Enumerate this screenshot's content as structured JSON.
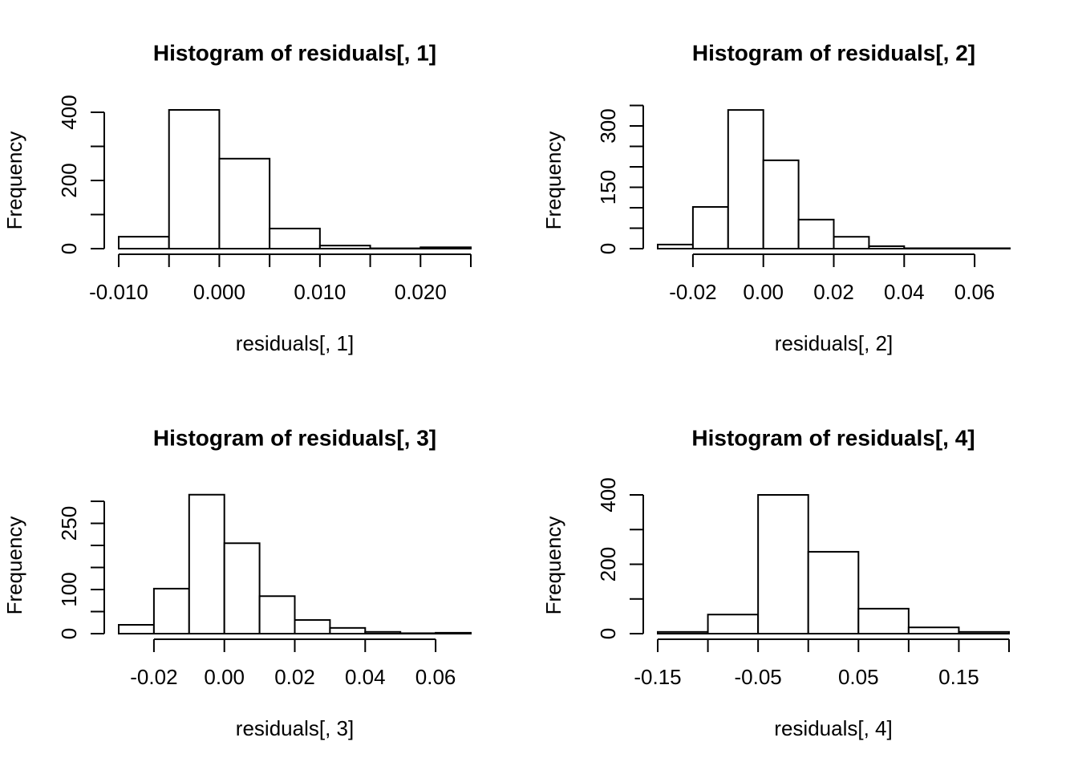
{
  "chart_data": [
    {
      "type": "histogram",
      "title": "Histogram of residuals[, 1]",
      "xlabel": "residuals[, 1]",
      "ylabel": "Frequency",
      "bins": [
        -0.01,
        -0.005,
        0,
        0.005,
        0.01,
        0.015,
        0.02,
        0.025
      ],
      "counts": [
        35,
        407,
        264,
        59,
        9,
        1,
        4
      ],
      "xlim": [
        -0.01,
        0.025
      ],
      "ylim": [
        0,
        400
      ],
      "xticks": [
        {
          "value": -0.01,
          "label": "-0.010"
        },
        -0.005,
        {
          "value": 0,
          "label": "0.000"
        },
        0.005,
        {
          "value": 0.01,
          "label": "0.010"
        },
        0.015,
        {
          "value": 0.02,
          "label": "0.020"
        },
        0.025
      ],
      "yticks": [
        0,
        100,
        200,
        300,
        400
      ]
    },
    {
      "type": "histogram",
      "title": "Histogram of residuals[, 2]",
      "xlabel": "residuals[, 2]",
      "ylabel": "Frequency",
      "bins": [
        -0.03,
        -0.02,
        -0.01,
        0,
        0.01,
        0.02,
        0.03,
        0.04,
        0.05,
        0.06,
        0.07
      ],
      "counts": [
        10,
        102,
        339,
        216,
        71,
        29,
        6,
        1,
        1,
        1
      ],
      "xlim": [
        -0.03,
        0.07
      ],
      "ylim": [
        0,
        350
      ],
      "xticks": [
        {
          "value": -0.02,
          "label": "-0.02"
        },
        {
          "value": 0,
          "label": "0.00"
        },
        {
          "value": 0.02,
          "label": "0.02"
        },
        {
          "value": 0.04,
          "label": "0.04"
        },
        {
          "value": 0.06,
          "label": "0.06"
        }
      ],
      "yticks": [
        0,
        50,
        100,
        150,
        200,
        250,
        300,
        350
      ]
    },
    {
      "type": "histogram",
      "title": "Histogram of residuals[, 3]",
      "xlabel": "residuals[, 3]",
      "ylabel": "Frequency",
      "bins": [
        -0.03,
        -0.02,
        -0.01,
        0,
        0.01,
        0.02,
        0.03,
        0.04,
        0.05,
        0.06,
        0.07
      ],
      "counts": [
        20,
        102,
        315,
        205,
        85,
        31,
        13,
        4,
        1,
        2
      ],
      "xlim": [
        -0.03,
        0.07
      ],
      "ylim": [
        0,
        300
      ],
      "xticks": [
        {
          "value": -0.02,
          "label": "-0.02"
        },
        {
          "value": 0,
          "label": "0.00"
        },
        {
          "value": 0.02,
          "label": "0.02"
        },
        {
          "value": 0.04,
          "label": "0.04"
        },
        {
          "value": 0.06,
          "label": "0.06"
        }
      ],
      "yticks": [
        0,
        50,
        100,
        150,
        200,
        250,
        300
      ]
    },
    {
      "type": "histogram",
      "title": "Histogram of residuals[, 4]",
      "xlabel": "residuals[, 4]",
      "ylabel": "Frequency",
      "bins": [
        -0.15,
        -0.1,
        -0.05,
        0,
        0.05,
        0.1,
        0.15,
        0.2
      ],
      "counts": [
        5,
        55,
        400,
        236,
        72,
        18,
        5
      ],
      "xlim": [
        -0.15,
        0.2
      ],
      "ylim": [
        0,
        400
      ],
      "xticks": [
        {
          "value": -0.15,
          "label": "-0.15"
        },
        -0.1,
        {
          "value": -0.05,
          "label": "-0.05"
        },
        0,
        {
          "value": 0.05,
          "label": "0.05"
        },
        0.1,
        {
          "value": 0.15,
          "label": "0.15"
        },
        0.2
      ],
      "yticks": [
        0,
        100,
        200,
        300,
        400
      ]
    }
  ]
}
